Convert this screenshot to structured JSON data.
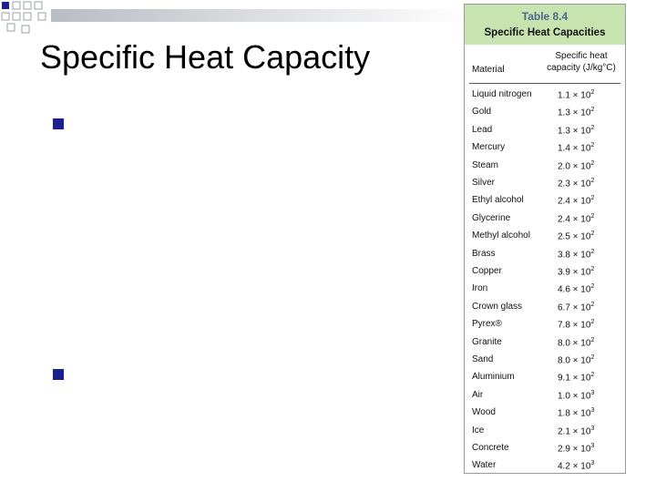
{
  "slide": {
    "title": "Specific Heat Capacity",
    "accent": "#1c1f8c"
  },
  "table": {
    "number": "Table 8.4",
    "title": "Specific Heat Capacities",
    "col_material": "Material",
    "col_value_line1": "Specific heat",
    "col_value_line2": "capacity (J/kg°C)",
    "header_color": "#c7e3b0",
    "rows": [
      {
        "material": "Liquid nitrogen",
        "mantissa": "1.1",
        "exp": "2"
      },
      {
        "material": "Gold",
        "mantissa": "1.3",
        "exp": "2"
      },
      {
        "material": "Lead",
        "mantissa": "1.3",
        "exp": "2"
      },
      {
        "material": "Mercury",
        "mantissa": "1.4",
        "exp": "2"
      },
      {
        "material": "Steam",
        "mantissa": "2.0",
        "exp": "2"
      },
      {
        "material": "Silver",
        "mantissa": "2.3",
        "exp": "2"
      },
      {
        "material": "Ethyl alcohol",
        "mantissa": "2.4",
        "exp": "2"
      },
      {
        "material": "Glycerine",
        "mantissa": "2.4",
        "exp": "2"
      },
      {
        "material": "Methyl alcohol",
        "mantissa": "2.5",
        "exp": "2"
      },
      {
        "material": "Brass",
        "mantissa": "3.8",
        "exp": "2"
      },
      {
        "material": "Copper",
        "mantissa": "3.9",
        "exp": "2"
      },
      {
        "material": "Iron",
        "mantissa": "4.6",
        "exp": "2"
      },
      {
        "material": "Crown glass",
        "mantissa": "6.7",
        "exp": "2"
      },
      {
        "material": "Pyrex®",
        "mantissa": "7.8",
        "exp": "2"
      },
      {
        "material": "Granite",
        "mantissa": "8.0",
        "exp": "2"
      },
      {
        "material": "Sand",
        "mantissa": "8.0",
        "exp": "2"
      },
      {
        "material": "Aluminium",
        "mantissa": "9.1",
        "exp": "2"
      },
      {
        "material": "Air",
        "mantissa": "1.0",
        "exp": "3"
      },
      {
        "material": "Wood",
        "mantissa": "1.8",
        "exp": "3"
      },
      {
        "material": "Ice",
        "mantissa": "2.1",
        "exp": "3"
      },
      {
        "material": "Concrete",
        "mantissa": "2.9",
        "exp": "3"
      },
      {
        "material": "Water",
        "mantissa": "4.2",
        "exp": "3"
      }
    ]
  }
}
